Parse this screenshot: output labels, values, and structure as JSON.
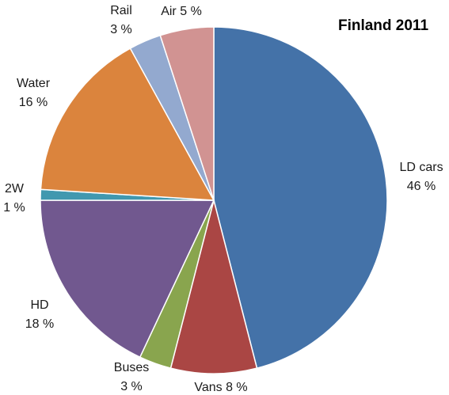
{
  "chart_data": {
    "type": "pie",
    "title": "Finland 2011",
    "start_angle_deg": 0,
    "direction": "clockwise",
    "slices": [
      {
        "name": "LD cars",
        "value": 46,
        "label": "46 %",
        "color": "#4472a8"
      },
      {
        "name": "Vans",
        "value": 8,
        "label": "8 %",
        "color": "#aa4644"
      },
      {
        "name": "Buses",
        "value": 3,
        "label": "3 %",
        "color": "#89a54e"
      },
      {
        "name": "HD",
        "value": 18,
        "label": "18 %",
        "color": "#71588f"
      },
      {
        "name": "2W",
        "value": 1,
        "label": "1 %",
        "color": "#4198af"
      },
      {
        "name": "Water",
        "value": 16,
        "label": "16 %",
        "color": "#db843d"
      },
      {
        "name": "Rail",
        "value": 3,
        "label": "3 %",
        "color": "#93a9cf"
      },
      {
        "name": "Air",
        "value": 5,
        "label": "5 %",
        "color": "#d19392"
      }
    ]
  }
}
